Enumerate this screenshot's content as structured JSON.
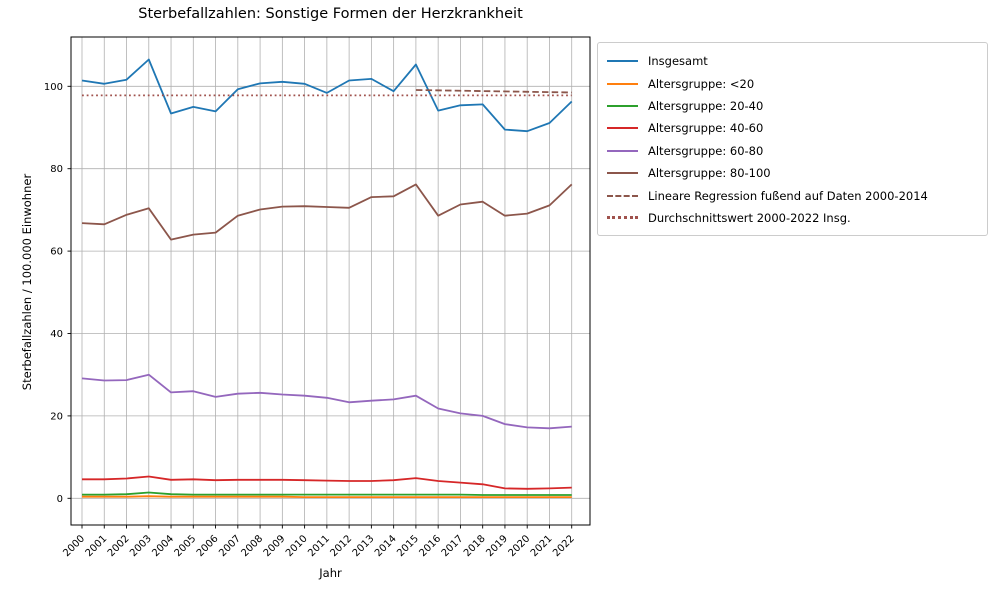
{
  "figure": {
    "title": "Sterbefallzahlen: Sonstige Formen der Herzkrankheit",
    "xlabel": "Jahr",
    "ylabel": "Sterbefallzahlen / 100.000 Einwohner"
  },
  "chart_data": {
    "type": "line",
    "title": "Sterbefallzahlen: Sonstige Formen der Herzkrankheit",
    "xlabel": "Jahr",
    "ylabel": "Sterbefallzahlen / 100.000 Einwohner",
    "x": [
      2000,
      2001,
      2002,
      2003,
      2004,
      2005,
      2006,
      2007,
      2008,
      2009,
      2010,
      2011,
      2012,
      2013,
      2014,
      2015,
      2016,
      2017,
      2018,
      2019,
      2020,
      2021,
      2022
    ],
    "xtick_labels": [
      "2000",
      "2001",
      "2002",
      "2003",
      "2004",
      "2005",
      "2006",
      "2007",
      "2008",
      "2009",
      "2010",
      "2011",
      "2012",
      "2013",
      "2014",
      "2015",
      "2016",
      "2017",
      "2018",
      "2019",
      "2020",
      "2021",
      "2022"
    ],
    "xtick_rotation": 45,
    "yticks": [
      0,
      20,
      40,
      60,
      80,
      100
    ],
    "ylim": [
      -6.5,
      112
    ],
    "xlim": [
      1999.5,
      2022.8
    ],
    "grid": true,
    "grid_color": "#b0b0b0",
    "legend_position": "upper-right-outside",
    "series": [
      {
        "name": "Insgesamt",
        "color": "#1f77b4",
        "style": "solid",
        "values": [
          101.4,
          100.6,
          101.6,
          106.5,
          93.4,
          95.0,
          93.9,
          99.3,
          100.7,
          101.1,
          100.6,
          98.4,
          101.4,
          101.8,
          98.8,
          105.3,
          94.1,
          95.4,
          95.6,
          89.5,
          89.1,
          91.1,
          96.3
        ]
      },
      {
        "name": "Altersgruppe: <20",
        "color": "#ff7f0e",
        "style": "solid",
        "values": [
          0.4,
          0.4,
          0.4,
          0.5,
          0.4,
          0.4,
          0.4,
          0.4,
          0.4,
          0.4,
          0.3,
          0.3,
          0.3,
          0.3,
          0.3,
          0.3,
          0.3,
          0.3,
          0.3,
          0.3,
          0.3,
          0.3,
          0.3
        ]
      },
      {
        "name": "Altersgruppe: 20-40",
        "color": "#2ca02c",
        "style": "solid",
        "values": [
          0.9,
          0.9,
          1.0,
          1.4,
          1.0,
          0.9,
          0.9,
          0.9,
          0.9,
          0.9,
          0.9,
          0.9,
          0.9,
          0.9,
          0.9,
          0.9,
          0.9,
          0.9,
          0.8,
          0.8,
          0.8,
          0.8,
          0.8
        ]
      },
      {
        "name": "Altersgruppe: 40-60",
        "color": "#d62728",
        "style": "solid",
        "values": [
          4.6,
          4.6,
          4.8,
          5.3,
          4.5,
          4.6,
          4.4,
          4.5,
          4.5,
          4.5,
          4.4,
          4.3,
          4.2,
          4.2,
          4.4,
          4.9,
          4.2,
          3.8,
          3.4,
          2.4,
          2.3,
          2.4,
          2.6
        ]
      },
      {
        "name": "Altersgruppe: 60-80",
        "color": "#9467bd",
        "style": "solid",
        "values": [
          29.1,
          28.6,
          28.7,
          30.0,
          25.7,
          26.0,
          24.6,
          25.4,
          25.6,
          25.2,
          24.9,
          24.4,
          23.3,
          23.7,
          24.0,
          24.9,
          21.8,
          20.6,
          20.0,
          18.0,
          17.2,
          17.0,
          17.4
        ]
      },
      {
        "name": "Altersgruppe: 80-100",
        "color": "#8c564b",
        "style": "solid",
        "values": [
          66.8,
          66.5,
          68.8,
          70.4,
          62.8,
          64.0,
          64.5,
          68.6,
          70.1,
          70.8,
          70.9,
          70.7,
          70.5,
          73.1,
          73.3,
          76.2,
          68.6,
          71.3,
          72.0,
          68.6,
          69.1,
          71.1,
          76.2
        ]
      },
      {
        "name": "Lineare Regression fußend auf Daten 2000-2014",
        "color": "#8c564b",
        "style": "dashed",
        "x": [
          2015,
          2022
        ],
        "values": [
          99.1,
          98.5
        ]
      },
      {
        "name": "Durchschnittswert 2000-2022 Insg.",
        "color": "#a0524d",
        "style": "dotted",
        "x": [
          2000,
          2022
        ],
        "values": [
          97.8,
          97.8
        ]
      }
    ]
  }
}
